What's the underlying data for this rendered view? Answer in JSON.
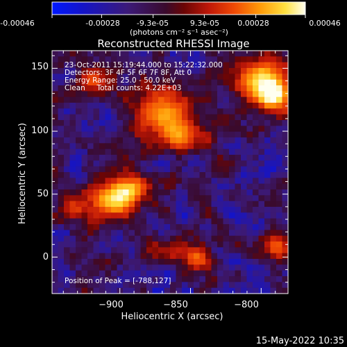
{
  "colorbar": {
    "tick_labels": [
      "-0.00046",
      "-0.00028",
      "-9.3e-05",
      "9.3e-05",
      "0.00028",
      "0.00046"
    ],
    "tick_values": [
      -0.00046,
      -0.00028,
      -9.3e-05,
      9.3e-05,
      0.00028,
      0.00046
    ],
    "unit_label": "(photons cm⁻² s⁻¹ asec⁻²)",
    "range": [
      -0.00046,
      0.00046
    ]
  },
  "chart_data": {
    "type": "heatmap",
    "title": "Reconstructed RHESSI Image",
    "xlabel": "Heliocentric X (arcsec)",
    "ylabel": "Heliocentric Y (arcsec)",
    "xlim": [
      -948,
      -781
    ],
    "ylim": [
      -29,
      164
    ],
    "x_ticks": [
      -900,
      -850,
      -800
    ],
    "x_tick_labels": [
      "−900",
      "−850",
      "−800"
    ],
    "y_ticks": [
      0,
      50,
      100,
      150
    ],
    "y_tick_labels": [
      "0",
      "50",
      "100",
      "150"
    ],
    "grid": false,
    "colormap": "rhessi-blue-purple-red-yellow-white",
    "annotations": [
      "23-Oct-2011 15:19:44.000 to 15:22:32.000",
      "Detectors: 3F 4F 5F 6F 7F 8F, Att 0",
      "Energy Range: 25.0 - 50.0 keV",
      "Clean     Total counts: 4.22E+03"
    ],
    "peak_label": "Position of Peak = [-788,127]",
    "peak": [
      -788,
      127
    ],
    "bright_regions": [
      {
        "x": -905,
        "y": 45,
        "sigma": 12,
        "amp": 0.95
      },
      {
        "x": -890,
        "y": 55,
        "sigma": 9,
        "amp": 0.6
      },
      {
        "x": -870,
        "y": 115,
        "sigma": 16,
        "amp": 0.8
      },
      {
        "x": -855,
        "y": 95,
        "sigma": 10,
        "amp": 0.55
      },
      {
        "x": -800,
        "y": 140,
        "sigma": 14,
        "amp": 1.0
      },
      {
        "x": -790,
        "y": 127,
        "sigma": 8,
        "amp": 0.7
      },
      {
        "x": -790,
        "y": 10,
        "sigma": 9,
        "amp": 0.65
      },
      {
        "x": -845,
        "y": 0,
        "sigma": 8,
        "amp": 0.7
      },
      {
        "x": -918,
        "y": 140,
        "sigma": 9,
        "amp": 0.6
      },
      {
        "x": -935,
        "y": 40,
        "sigma": 8,
        "amp": 0.5
      },
      {
        "x": -870,
        "y": 5,
        "sigma": 8,
        "amp": 0.45
      },
      {
        "x": -830,
        "y": 75,
        "sigma": 7,
        "amp": 0.3
      }
    ]
  },
  "footer": {
    "timestamp": "15-May-2022 10:35"
  }
}
